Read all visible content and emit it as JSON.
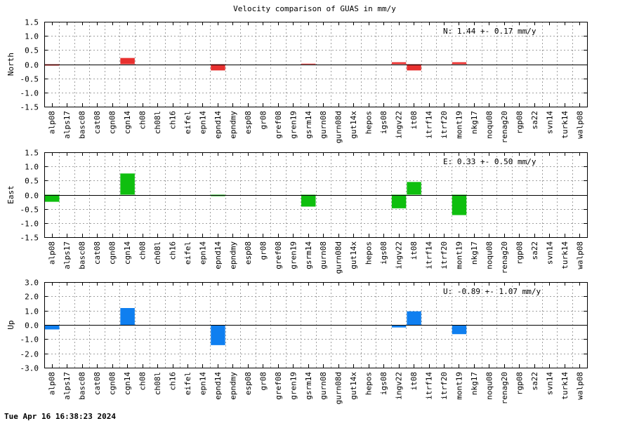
{
  "title": "Velocity comparison of GUAS in mm/y",
  "footer": "Tue Apr 16 16:38:23 2024",
  "chart_data": [
    {
      "type": "bar",
      "ylabel": "North",
      "ylim": [
        -1.5,
        1.5
      ],
      "yticks": [
        "1.5",
        "1.0",
        "0.5",
        "0.0",
        "-0.5",
        "-1.0",
        "-1.5"
      ],
      "yticks_values": [
        1.5,
        1.0,
        0.5,
        0.0,
        -0.5,
        -1.0,
        -1.5
      ],
      "stat_text": "N:   1.44 +-  0.17 mm/y",
      "color": "#e8302f",
      "grid": true,
      "categories": [
        "alp08",
        "alps17",
        "basc08",
        "cat08",
        "cgn08",
        "cgn14",
        "ch08",
        "ch08l",
        "ch16",
        "eifel",
        "epn14",
        "epnd14",
        "epndmy",
        "esp08",
        "gr08",
        "gref08",
        "gren19",
        "gsrm14",
        "gurn08",
        "gurn08d",
        "gut14x",
        "hepos",
        "igs08",
        "ingv22",
        "it08",
        "itrf14",
        "itrf20",
        "mont19",
        "nkg17",
        "noqu08",
        "renag20",
        "rgp08",
        "sa22",
        "svn14",
        "turk14",
        "walp08"
      ],
      "values": [
        -0.05,
        0,
        0,
        0,
        0,
        0.22,
        0,
        0,
        0,
        0,
        0,
        -0.22,
        0,
        0,
        0,
        0,
        0,
        0.02,
        0,
        0,
        0,
        0,
        0,
        0.07,
        -0.22,
        0,
        0,
        0.07,
        0,
        0,
        0,
        0,
        0,
        0,
        0,
        0
      ]
    },
    {
      "type": "bar",
      "ylabel": "East",
      "ylim": [
        -1.5,
        1.5
      ],
      "yticks": [
        "1.5",
        "1.0",
        "0.5",
        "0.0",
        "-0.5",
        "-1.0",
        "-1.5"
      ],
      "yticks_values": [
        1.5,
        1.0,
        0.5,
        0.0,
        -0.5,
        -1.0,
        -1.5
      ],
      "stat_text": "E:   0.33 +-  0.50 mm/y",
      "color": "#0fbf0f",
      "grid": true,
      "categories": [
        "alp08",
        "alps17",
        "basc08",
        "cat08",
        "cgn08",
        "cgn14",
        "ch08",
        "ch08l",
        "ch16",
        "eifel",
        "epn14",
        "epnd14",
        "epndmy",
        "esp08",
        "gr08",
        "gref08",
        "gren19",
        "gsrm14",
        "gurn08",
        "gurn08d",
        "gut14x",
        "hepos",
        "igs08",
        "ingv22",
        "it08",
        "itrf14",
        "itrf20",
        "mont19",
        "nkg17",
        "noqu08",
        "renag20",
        "rgp08",
        "sa22",
        "svn14",
        "turk14",
        "walp08"
      ],
      "values": [
        -0.25,
        0,
        0,
        0,
        0,
        0.75,
        0,
        0,
        0,
        0,
        0,
        -0.05,
        0,
        0,
        0,
        0,
        0,
        -0.42,
        0,
        0,
        0,
        0,
        0,
        -0.48,
        0.45,
        0,
        0,
        -0.72,
        0,
        0,
        0,
        0,
        0,
        0,
        0,
        0
      ]
    },
    {
      "type": "bar",
      "ylabel": "Up",
      "ylim": [
        -3.0,
        3.0
      ],
      "yticks": [
        "3.0",
        "2.0",
        "1.0",
        "0.0",
        "-1.0",
        "-2.0",
        "-3.0"
      ],
      "yticks_values": [
        3.0,
        2.0,
        1.0,
        0.0,
        -1.0,
        -2.0,
        -3.0
      ],
      "stat_text": "U:  -0.89 +-  1.07 mm/y",
      "color": "#0f7ff0",
      "grid": true,
      "categories": [
        "alp08",
        "alps17",
        "basc08",
        "cat08",
        "cgn08",
        "cgn14",
        "ch08",
        "ch08l",
        "ch16",
        "eifel",
        "epn14",
        "epnd14",
        "epndmy",
        "esp08",
        "gr08",
        "gref08",
        "gren19",
        "gsrm14",
        "gurn08",
        "gurn08d",
        "gut14x",
        "hepos",
        "igs08",
        "ingv22",
        "it08",
        "itrf14",
        "itrf20",
        "mont19",
        "nkg17",
        "noqu08",
        "renag20",
        "rgp08",
        "sa22",
        "svn14",
        "turk14",
        "walp08"
      ],
      "values": [
        -0.32,
        0,
        0,
        0,
        0,
        1.18,
        0,
        0,
        0,
        0,
        0,
        -1.42,
        0,
        0,
        0,
        0,
        0,
        0,
        0,
        0,
        0,
        0,
        0,
        -0.18,
        0.95,
        0,
        0,
        -0.65,
        0,
        0,
        0,
        0,
        0,
        0,
        0,
        0
      ]
    }
  ]
}
